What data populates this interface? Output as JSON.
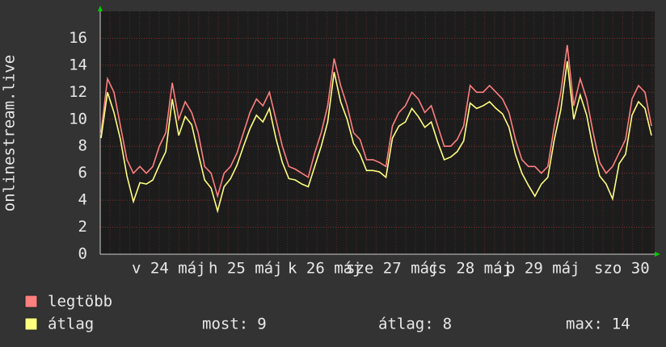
{
  "chart_data": {
    "type": "line",
    "y_label": "onlinestream.live",
    "x_labels": [
      "v 24 máj",
      "h 25 máj",
      "k 26 máj",
      "sze 27 máj",
      "cs 28 máj",
      "p 29 máj",
      "szo 30"
    ],
    "ylim": [
      0,
      18
    ],
    "yticks": [
      0,
      2,
      4,
      6,
      8,
      10,
      12,
      14,
      16
    ],
    "grid": true,
    "series": [
      {
        "name": "legtöbb",
        "color": "#ff7f7f",
        "values": [
          9,
          13,
          12,
          9.5,
          7,
          6,
          6.5,
          6,
          6.5,
          8,
          9,
          12.7,
          10,
          11.3,
          10.5,
          9,
          6.5,
          6,
          4.3,
          6,
          6.5,
          7.5,
          9,
          10.5,
          11.5,
          11,
          12,
          10,
          8,
          6.5,
          6.3,
          6,
          5.7,
          7.5,
          9,
          11,
          14.5,
          12.5,
          11,
          9,
          8.5,
          7,
          7,
          6.8,
          6.5,
          9.5,
          10.5,
          11,
          12,
          11.5,
          10.5,
          11,
          9.5,
          8,
          8,
          8.5,
          9.5,
          12.5,
          12,
          12,
          12.5,
          12,
          11.5,
          10.5,
          8.5,
          7,
          6.5,
          6.5,
          6,
          6.5,
          9.5,
          12,
          15.5,
          11,
          13,
          11.5,
          9,
          6.8,
          6,
          6.5,
          7.5,
          8.5,
          11.5,
          12.5,
          12,
          9.5
        ]
      },
      {
        "name": "átlag",
        "color": "#ffff7f",
        "values": [
          8.6,
          12,
          10.5,
          8.5,
          5.8,
          3.9,
          5.3,
          5.2,
          5.5,
          6.6,
          7.6,
          11.5,
          8.8,
          10.2,
          9.6,
          7.5,
          5.5,
          4.9,
          3.2,
          5,
          5.6,
          6.6,
          8,
          9.3,
          10.3,
          9.8,
          10.8,
          8.6,
          6.8,
          5.6,
          5.5,
          5.2,
          5,
          6.5,
          8,
          9.8,
          13.5,
          11.3,
          10,
          8.2,
          7.4,
          6.2,
          6.2,
          6.1,
          5.7,
          8.6,
          9.5,
          9.8,
          10.8,
          10.2,
          9.4,
          9.8,
          8.3,
          7,
          7.2,
          7.6,
          8.4,
          11.2,
          10.8,
          11,
          11.3,
          10.8,
          10.4,
          9.4,
          7.4,
          6,
          5.1,
          4.3,
          5.2,
          5.7,
          8.5,
          10.7,
          14.3,
          10,
          11.8,
          10.3,
          7.8,
          5.8,
          5.2,
          4.1,
          6.7,
          7.4,
          10.3,
          11.3,
          10.8,
          8.8
        ]
      }
    ],
    "stats": [
      {
        "label": "most:",
        "value": 9
      },
      {
        "label": "átlag:",
        "value": 8
      },
      {
        "label": "max:",
        "value": 14
      }
    ]
  }
}
